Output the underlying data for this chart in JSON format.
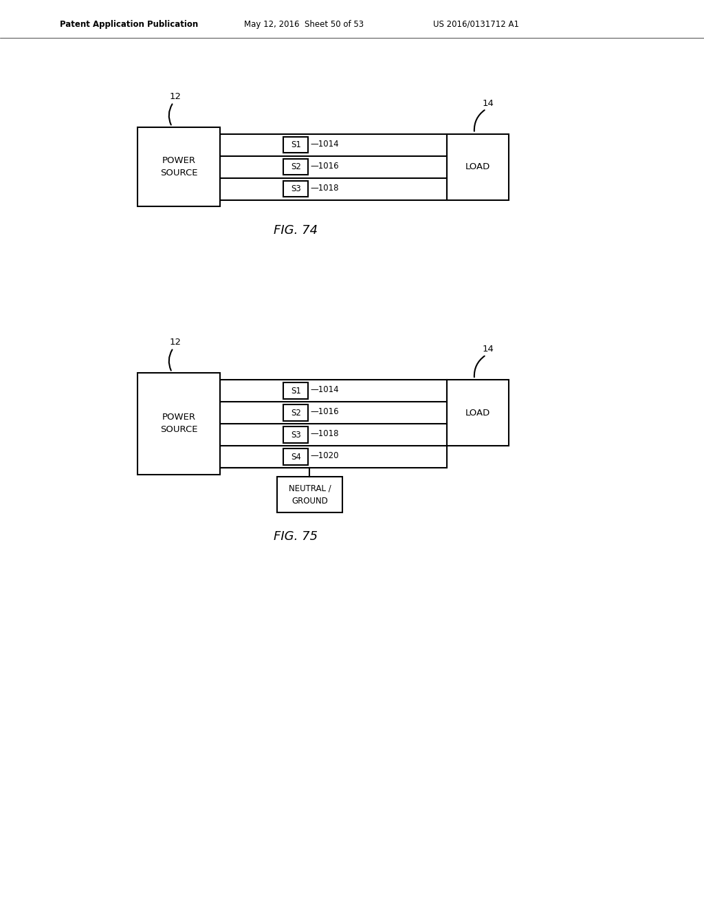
{
  "bg_color": "#ffffff",
  "line_color": "#000000",
  "header_text": "Patent Application Publication",
  "header_date": "May 12, 2016  Sheet 50 of 53",
  "header_patent": "US 2016/0131712 A1",
  "fig74": {
    "caption": "FIG. 74",
    "label_ps": "12",
    "label_load": "14",
    "switches": [
      "S1",
      "S2",
      "S3"
    ],
    "switch_ids": [
      "1014",
      "1016",
      "1018"
    ]
  },
  "fig75": {
    "caption": "FIG. 75",
    "label_ps": "12",
    "label_load": "14",
    "switches": [
      "S1",
      "S2",
      "S3",
      "S4"
    ],
    "switch_ids": [
      "1014",
      "1016",
      "1018",
      "1020"
    ],
    "neutral_label1": "NEUTRAL /",
    "neutral_label2": "GROUND"
  }
}
